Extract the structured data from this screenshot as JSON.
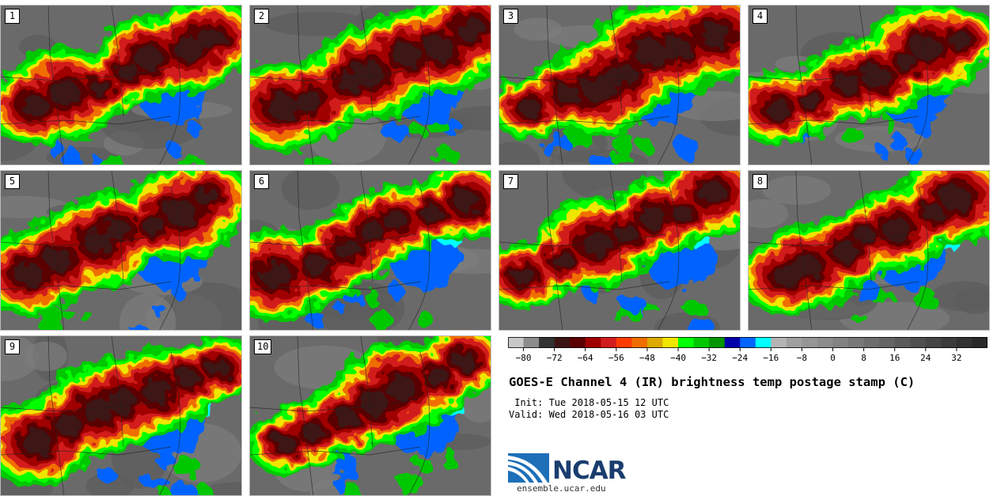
{
  "panels": [
    {
      "label": "1"
    },
    {
      "label": "2"
    },
    {
      "label": "3"
    },
    {
      "label": "4"
    },
    {
      "label": "5"
    },
    {
      "label": "6"
    },
    {
      "label": "7"
    },
    {
      "label": "8"
    },
    {
      "label": "9"
    },
    {
      "label": "10"
    }
  ],
  "colorbar": {
    "colors": [
      "#c8c8c8",
      "#8c8c8c",
      "#323232",
      "#3c1414",
      "#5a0000",
      "#a00000",
      "#d21e1e",
      "#ff3c00",
      "#f06e00",
      "#dcaa00",
      "#f0e600",
      "#00ff00",
      "#00c800",
      "#009600",
      "#0000aa",
      "#0064ff",
      "#00ffff",
      "#b4b4b4",
      "#a0a0a0",
      "#969696",
      "#8c8c8c",
      "#828282",
      "#787878",
      "#6e6e6e",
      "#646464",
      "#5a5a5a",
      "#505050",
      "#464646",
      "#3c3c3c",
      "#323232",
      "#282828"
    ],
    "tick_labels": [
      "−80",
      "−72",
      "−64",
      "−56",
      "−48",
      "−40",
      "−32",
      "−24",
      "−16",
      "−8",
      "0",
      "8",
      "16",
      "24",
      "32"
    ]
  },
  "title": "GOES-E Channel 4 (IR) brightness temp postage stamp (C)",
  "init": " Init: Tue 2018-05-15 12 UTC",
  "valid": "Valid: Wed 2018-05-16 03 UTC",
  "logo_text": "NCAR",
  "site": "ensemble.ucar.edu"
}
